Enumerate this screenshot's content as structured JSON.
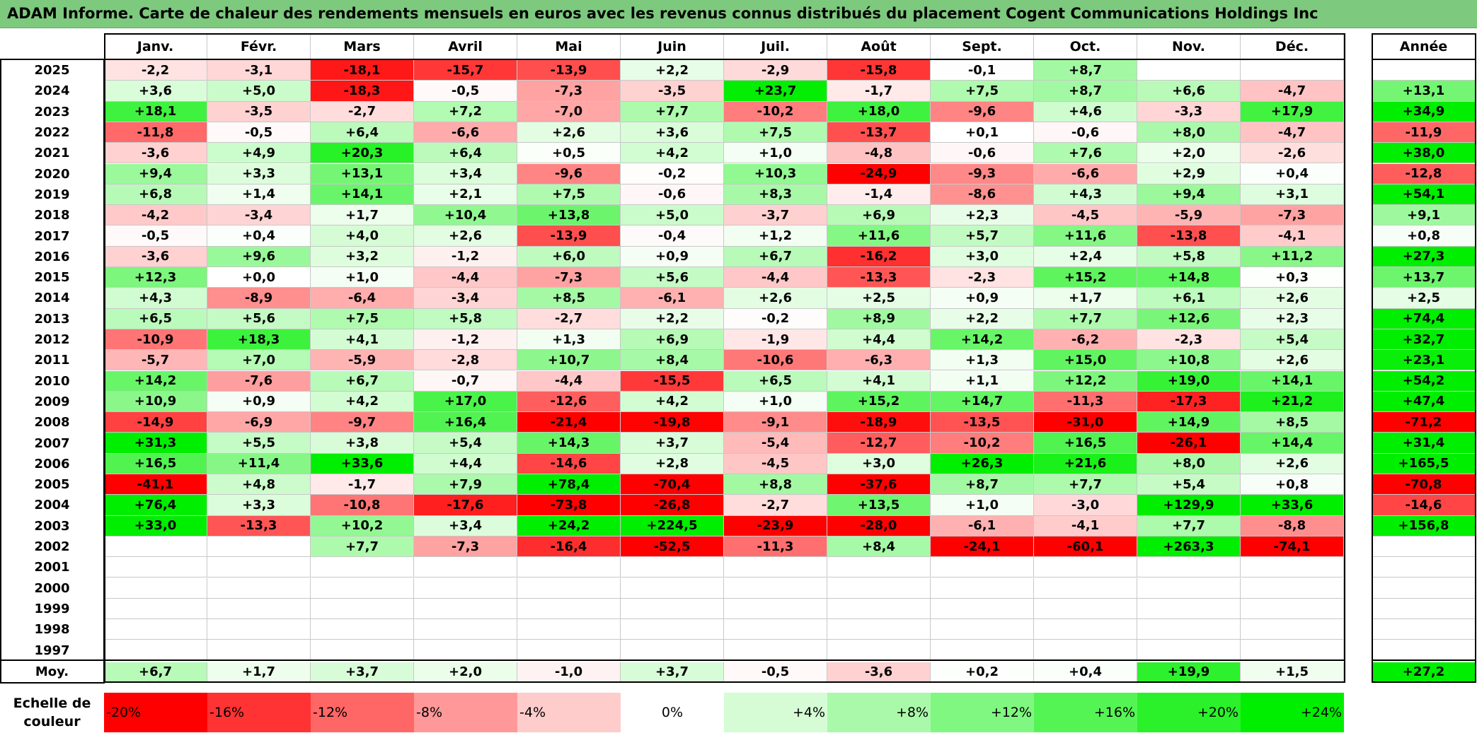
{
  "title": "ADAM Informe. Carte de chaleur des rendements mensuels en euros avec les revenus connus distribués du placement Cogent Communications Holdings Inc",
  "chart_data": {
    "type": "heatmap",
    "months": [
      "Janv.",
      "Févr.",
      "Mars",
      "Avril",
      "Mai",
      "Juin",
      "Juil.",
      "Août",
      "Sept.",
      "Oct.",
      "Nov.",
      "Déc."
    ],
    "year_header": "Année",
    "rows": [
      {
        "year": "2025",
        "values": [
          -2.2,
          -3.1,
          -18.1,
          -15.7,
          -13.9,
          2.2,
          -2.9,
          -15.8,
          -0.1,
          8.7,
          null,
          null
        ],
        "annual": null
      },
      {
        "year": "2024",
        "values": [
          3.6,
          5.0,
          -18.3,
          -0.5,
          -7.3,
          -3.5,
          23.7,
          -1.7,
          7.5,
          8.7,
          6.6,
          -4.7
        ],
        "annual": 13.1
      },
      {
        "year": "2023",
        "values": [
          18.1,
          -3.5,
          -2.7,
          7.2,
          -7.0,
          7.7,
          -10.2,
          18.0,
          -9.6,
          4.6,
          -3.3,
          17.9
        ],
        "annual": 34.9
      },
      {
        "year": "2022",
        "values": [
          -11.8,
          -0.5,
          6.4,
          -6.6,
          2.6,
          3.6,
          7.5,
          -13.7,
          0.1,
          -0.6,
          8.0,
          -4.7
        ],
        "annual": -11.9
      },
      {
        "year": "2021",
        "values": [
          -3.6,
          4.9,
          20.3,
          6.4,
          0.5,
          4.2,
          1.0,
          -4.8,
          -0.6,
          7.6,
          2.0,
          -2.6
        ],
        "annual": 38.0
      },
      {
        "year": "2020",
        "values": [
          9.4,
          3.3,
          13.1,
          3.4,
          -9.6,
          -0.2,
          10.3,
          -24.9,
          -9.3,
          -6.6,
          2.9,
          0.4
        ],
        "annual": -12.8
      },
      {
        "year": "2019",
        "values": [
          6.8,
          1.4,
          14.1,
          2.1,
          7.5,
          -0.6,
          8.3,
          -1.4,
          -8.6,
          4.3,
          9.4,
          3.1
        ],
        "annual": 54.1
      },
      {
        "year": "2018",
        "values": [
          -4.2,
          -3.4,
          1.7,
          10.4,
          13.8,
          5.0,
          -3.7,
          6.9,
          2.3,
          -4.5,
          -5.9,
          -7.3
        ],
        "annual": 9.1
      },
      {
        "year": "2017",
        "values": [
          -0.5,
          0.4,
          4.0,
          2.6,
          -13.9,
          -0.4,
          1.2,
          11.6,
          5.7,
          11.6,
          -13.8,
          -4.1
        ],
        "annual": 0.8
      },
      {
        "year": "2016",
        "values": [
          -3.6,
          9.6,
          3.2,
          -1.2,
          6.0,
          0.9,
          6.7,
          -16.2,
          3.0,
          2.4,
          5.8,
          11.2
        ],
        "annual": 27.3
      },
      {
        "year": "2015",
        "values": [
          12.3,
          0.0,
          1.0,
          -4.4,
          -7.3,
          5.6,
          -4.4,
          -13.3,
          -2.3,
          15.2,
          14.8,
          0.3
        ],
        "annual": 13.7
      },
      {
        "year": "2014",
        "values": [
          4.3,
          -8.9,
          -6.4,
          -3.4,
          8.5,
          -6.1,
          2.6,
          2.5,
          0.9,
          1.7,
          6.1,
          2.6
        ],
        "annual": 2.5
      },
      {
        "year": "2013",
        "values": [
          6.5,
          5.6,
          7.5,
          5.8,
          -2.7,
          2.2,
          -0.2,
          8.9,
          2.2,
          7.7,
          12.6,
          2.3
        ],
        "annual": 74.4
      },
      {
        "year": "2012",
        "values": [
          -10.9,
          18.3,
          4.1,
          -1.2,
          1.3,
          6.9,
          -1.9,
          4.4,
          14.2,
          -6.2,
          -2.3,
          5.4
        ],
        "annual": 32.7
      },
      {
        "year": "2011",
        "values": [
          -5.7,
          7.0,
          -5.9,
          -2.8,
          10.7,
          8.4,
          -10.6,
          -6.3,
          1.3,
          15.0,
          10.8,
          2.6
        ],
        "annual": 23.1
      },
      {
        "year": "2010",
        "values": [
          14.2,
          -7.6,
          6.7,
          -0.7,
          -4.4,
          -15.5,
          6.5,
          4.1,
          1.1,
          12.2,
          19.0,
          14.1
        ],
        "annual": 54.2
      },
      {
        "year": "2009",
        "values": [
          10.9,
          0.9,
          4.2,
          17.0,
          -12.6,
          4.2,
          1.0,
          15.2,
          14.7,
          -11.3,
          -17.3,
          21.2
        ],
        "annual": 47.4
      },
      {
        "year": "2008",
        "values": [
          -14.9,
          -6.9,
          -9.7,
          16.4,
          -21.4,
          -19.8,
          -9.1,
          -18.9,
          -13.5,
          -31.0,
          14.9,
          8.5
        ],
        "annual": -71.2
      },
      {
        "year": "2007",
        "values": [
          31.3,
          5.5,
          3.8,
          5.4,
          14.3,
          3.7,
          -5.4,
          -12.7,
          -10.2,
          16.5,
          -26.1,
          14.4
        ],
        "annual": 31.4
      },
      {
        "year": "2006",
        "values": [
          16.5,
          11.4,
          33.6,
          4.4,
          -14.6,
          2.8,
          -4.5,
          3.0,
          26.3,
          21.6,
          8.0,
          2.6
        ],
        "annual": 165.5
      },
      {
        "year": "2005",
        "values": [
          -41.1,
          4.8,
          -1.7,
          7.9,
          78.4,
          -70.4,
          8.8,
          -37.6,
          8.7,
          7.7,
          5.4,
          0.8
        ],
        "annual": -70.8
      },
      {
        "year": "2004",
        "values": [
          76.4,
          3.3,
          -10.8,
          -17.6,
          -73.8,
          -26.8,
          -2.7,
          13.5,
          1.0,
          -3.0,
          129.9,
          33.6
        ],
        "annual": -14.6
      },
      {
        "year": "2003",
        "values": [
          33.0,
          -13.3,
          10.2,
          3.4,
          24.2,
          224.5,
          -23.9,
          -28.0,
          -6.1,
          -4.1,
          7.7,
          -8.8
        ],
        "annual": 156.8
      },
      {
        "year": "2002",
        "values": [
          null,
          null,
          7.7,
          -7.3,
          -16.4,
          -52.5,
          -11.3,
          8.4,
          -24.1,
          -60.1,
          263.3,
          -74.1
        ],
        "annual": null
      },
      {
        "year": "2001",
        "values": [
          null,
          null,
          null,
          null,
          null,
          null,
          null,
          null,
          null,
          null,
          null,
          null
        ],
        "annual": null
      },
      {
        "year": "2000",
        "values": [
          null,
          null,
          null,
          null,
          null,
          null,
          null,
          null,
          null,
          null,
          null,
          null
        ],
        "annual": null
      },
      {
        "year": "1999",
        "values": [
          null,
          null,
          null,
          null,
          null,
          null,
          null,
          null,
          null,
          null,
          null,
          null
        ],
        "annual": null
      },
      {
        "year": "1998",
        "values": [
          null,
          null,
          null,
          null,
          null,
          null,
          null,
          null,
          null,
          null,
          null,
          null
        ],
        "annual": null
      },
      {
        "year": "1997",
        "values": [
          null,
          null,
          null,
          null,
          null,
          null,
          null,
          null,
          null,
          null,
          null,
          null
        ],
        "annual": null
      }
    ],
    "average": {
      "label": "Moy.",
      "values": [
        6.7,
        1.7,
        3.7,
        2.0,
        -1.0,
        3.7,
        -0.5,
        -3.6,
        0.2,
        0.4,
        19.9,
        1.5
      ],
      "annual": 27.2
    },
    "color_scale": {
      "label_line1": "Echelle de",
      "label_line2": "couleur",
      "entries": [
        {
          "label": "-20%",
          "value": -20
        },
        {
          "label": "-16%",
          "value": -16
        },
        {
          "label": "-12%",
          "value": -12
        },
        {
          "label": "-8%",
          "value": -8
        },
        {
          "label": "-4%",
          "value": -4
        },
        {
          "label": "0%",
          "value": 0
        },
        {
          "label": "+4%",
          "value": 4
        },
        {
          "label": "+8%",
          "value": 8
        },
        {
          "label": "+12%",
          "value": 12
        },
        {
          "label": "+16%",
          "value": 16
        },
        {
          "label": "+20%",
          "value": 20
        },
        {
          "label": "+24%",
          "value": 24
        }
      ],
      "negative_color": "#ff0000",
      "neutral_color": "#ffffff",
      "positive_color": "#00ee00"
    }
  }
}
